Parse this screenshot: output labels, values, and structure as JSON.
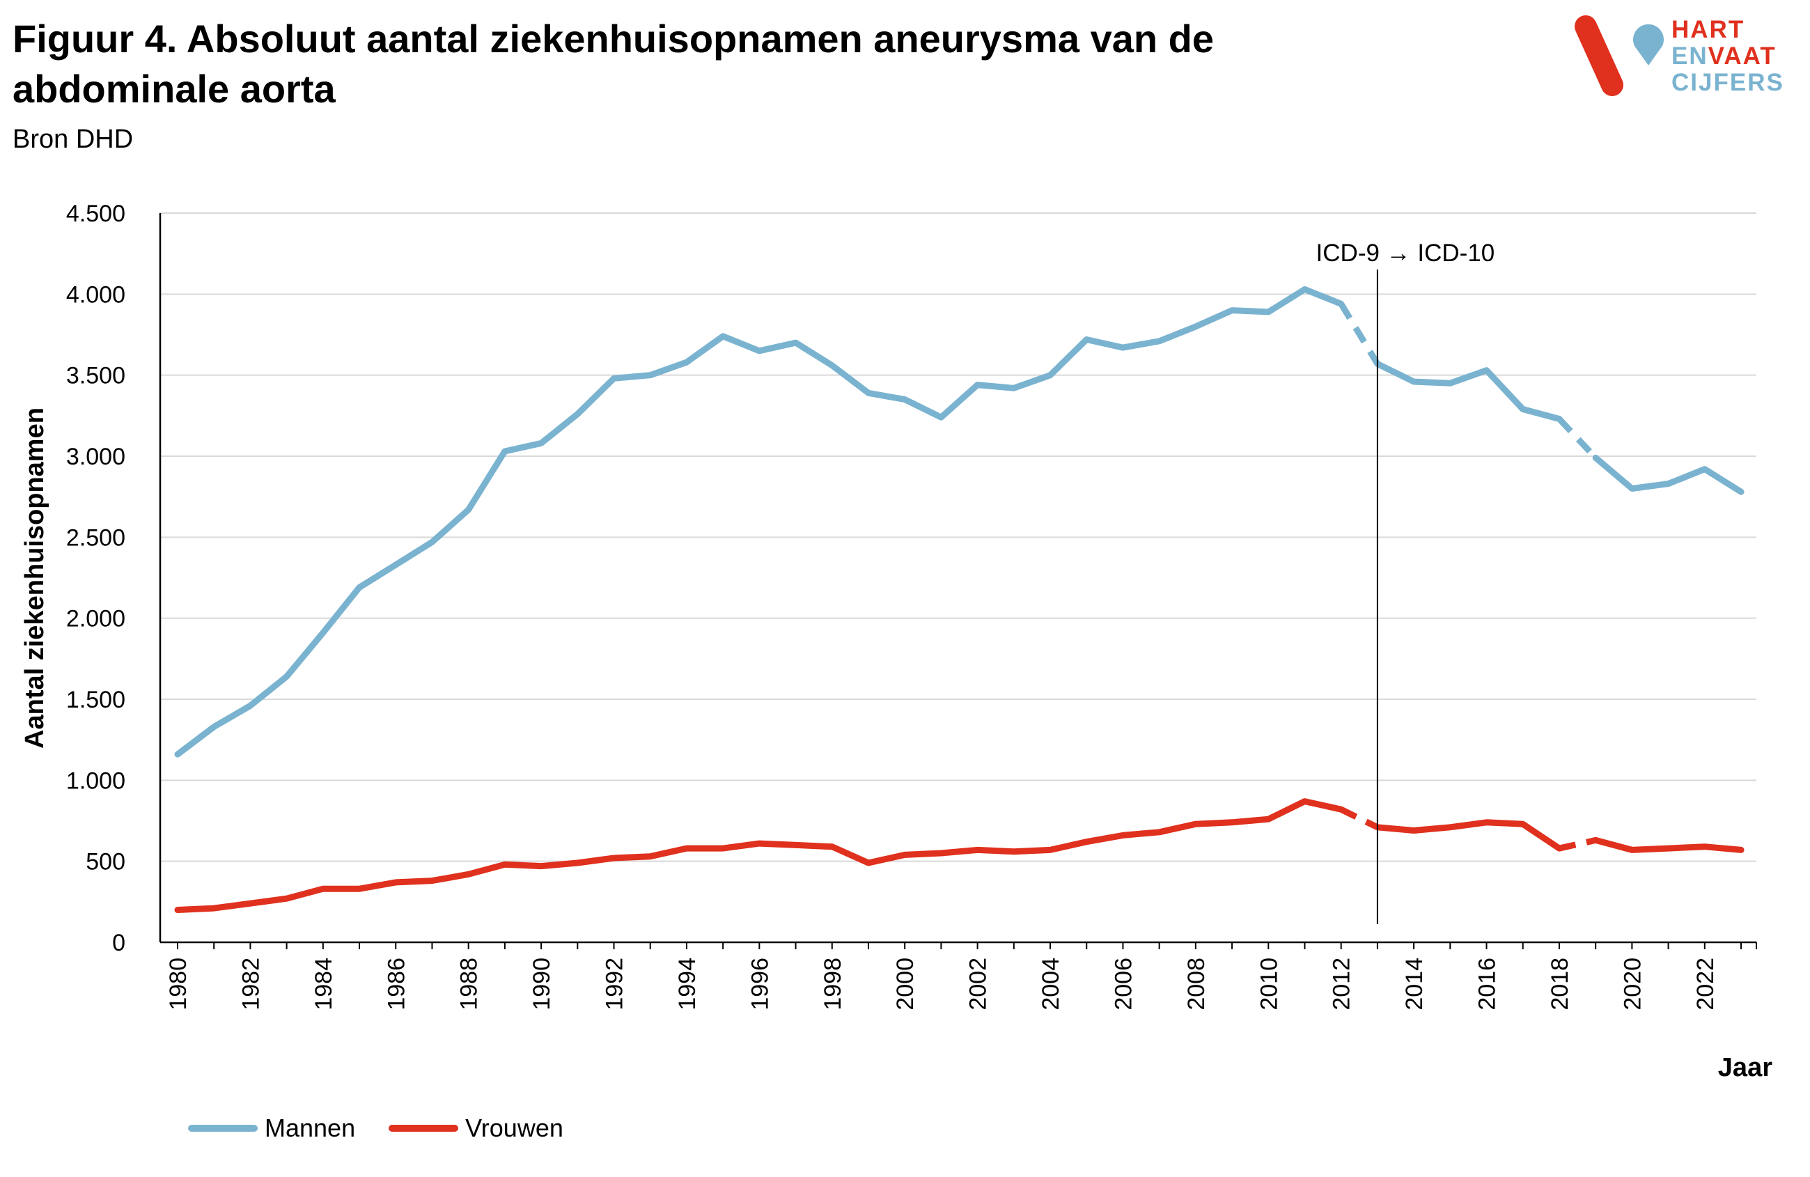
{
  "header": {
    "title": "Figuur 4. Absoluut aantal ziekenhuisopnamen aneurysma van de abdominale aorta",
    "subtitle": "Bron DHD"
  },
  "logo": {
    "line1": "HART",
    "line2a": "EN",
    "line2b": "VAAT",
    "line3": "CIJFERS",
    "colors": {
      "red": "#e0301e",
      "blue": "#7ab3d0"
    }
  },
  "chart_data": {
    "type": "line",
    "title": "",
    "xlabel": "Jaar",
    "ylabel": "Aantal ziekenhuisopnamen",
    "ylim": [
      0,
      4500
    ],
    "yticks": [
      0,
      500,
      1000,
      1500,
      2000,
      2500,
      3000,
      3500,
      4000,
      4500
    ],
    "ytick_labels": [
      "0",
      "500",
      "1.000",
      "1.500",
      "2.000",
      "2.500",
      "3.000",
      "3.500",
      "4.000",
      "4.500"
    ],
    "x": [
      1980,
      1981,
      1982,
      1983,
      1984,
      1985,
      1986,
      1987,
      1988,
      1989,
      1990,
      1991,
      1992,
      1993,
      1994,
      1995,
      1996,
      1997,
      1998,
      1999,
      2000,
      2001,
      2002,
      2003,
      2004,
      2005,
      2006,
      2007,
      2008,
      2009,
      2010,
      2011,
      2012,
      2013,
      2014,
      2015,
      2016,
      2017,
      2018,
      2019,
      2020,
      2021,
      2022,
      2023
    ],
    "xtick_labels": [
      "1980",
      "1982",
      "1984",
      "1986",
      "1988",
      "1990",
      "1992",
      "1994",
      "1996",
      "1998",
      "2000",
      "2002",
      "2004",
      "2006",
      "2008",
      "2010",
      "2012",
      "2014",
      "2016",
      "2018",
      "2020",
      "2022"
    ],
    "grid": "horizontal",
    "legend_position": "bottom-left",
    "annotation": {
      "text": "ICD-9 → ICD-10",
      "x": 2013
    },
    "dashed_segments": [
      [
        2012,
        2013
      ],
      [
        2018,
        2019
      ]
    ],
    "series": [
      {
        "name": "Mannen",
        "color": "#7ab3d0",
        "values": [
          1160,
          1330,
          1460,
          1640,
          1910,
          2190,
          2330,
          2470,
          2670,
          3030,
          3080,
          3260,
          3480,
          3500,
          3580,
          3740,
          3650,
          3700,
          3560,
          3390,
          3350,
          3240,
          3440,
          3420,
          3500,
          3720,
          3670,
          3710,
          3800,
          3900,
          3890,
          4030,
          3940,
          3570,
          3460,
          3450,
          3530,
          3290,
          3230,
          2990,
          2800,
          2830,
          2920,
          2780
        ]
      },
      {
        "name": "Vrouwen",
        "color": "#e0301e",
        "values": [
          200,
          210,
          240,
          270,
          330,
          330,
          370,
          380,
          420,
          480,
          470,
          490,
          520,
          530,
          580,
          580,
          610,
          600,
          590,
          490,
          540,
          550,
          570,
          560,
          570,
          620,
          660,
          680,
          730,
          740,
          760,
          870,
          820,
          710,
          690,
          710,
          740,
          730,
          580,
          630,
          570,
          580,
          590,
          570
        ]
      }
    ]
  }
}
